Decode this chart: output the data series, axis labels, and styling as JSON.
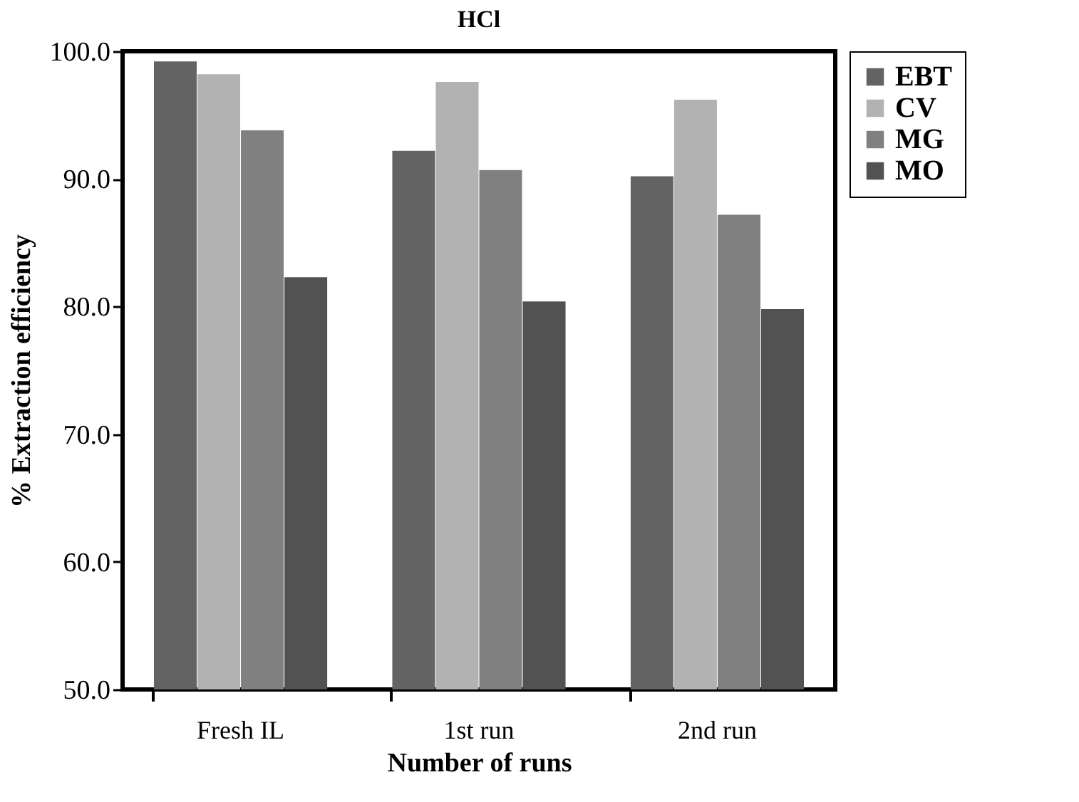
{
  "chart_data": {
    "type": "bar",
    "title": "HCl",
    "xlabel": "Number of runs",
    "ylabel": "% Extraction efficiency",
    "categories": [
      "Fresh IL",
      "1st run",
      "2nd run"
    ],
    "series": [
      {
        "name": "EBT",
        "color": "#636363",
        "values": [
          99.2,
          92.2,
          90.2
        ]
      },
      {
        "name": "CV",
        "color": "#b2b2b2",
        "values": [
          98.2,
          97.6,
          96.2
        ]
      },
      {
        "name": "MG",
        "color": "#808080",
        "values": [
          93.8,
          90.7,
          87.2
        ]
      },
      {
        "name": "MO",
        "color": "#525252",
        "values": [
          82.3,
          80.4,
          79.8
        ]
      }
    ],
    "ylim": [
      50,
      100
    ],
    "yticks": [
      {
        "value": 50,
        "label": "50.0"
      },
      {
        "value": 60,
        "label": "60.0"
      },
      {
        "value": 70,
        "label": "70.0"
      },
      {
        "value": 80,
        "label": "80.0"
      },
      {
        "value": 90,
        "label": "90.0"
      },
      {
        "value": 100,
        "label": "100.0"
      }
    ],
    "grid": false,
    "legend": "right"
  }
}
